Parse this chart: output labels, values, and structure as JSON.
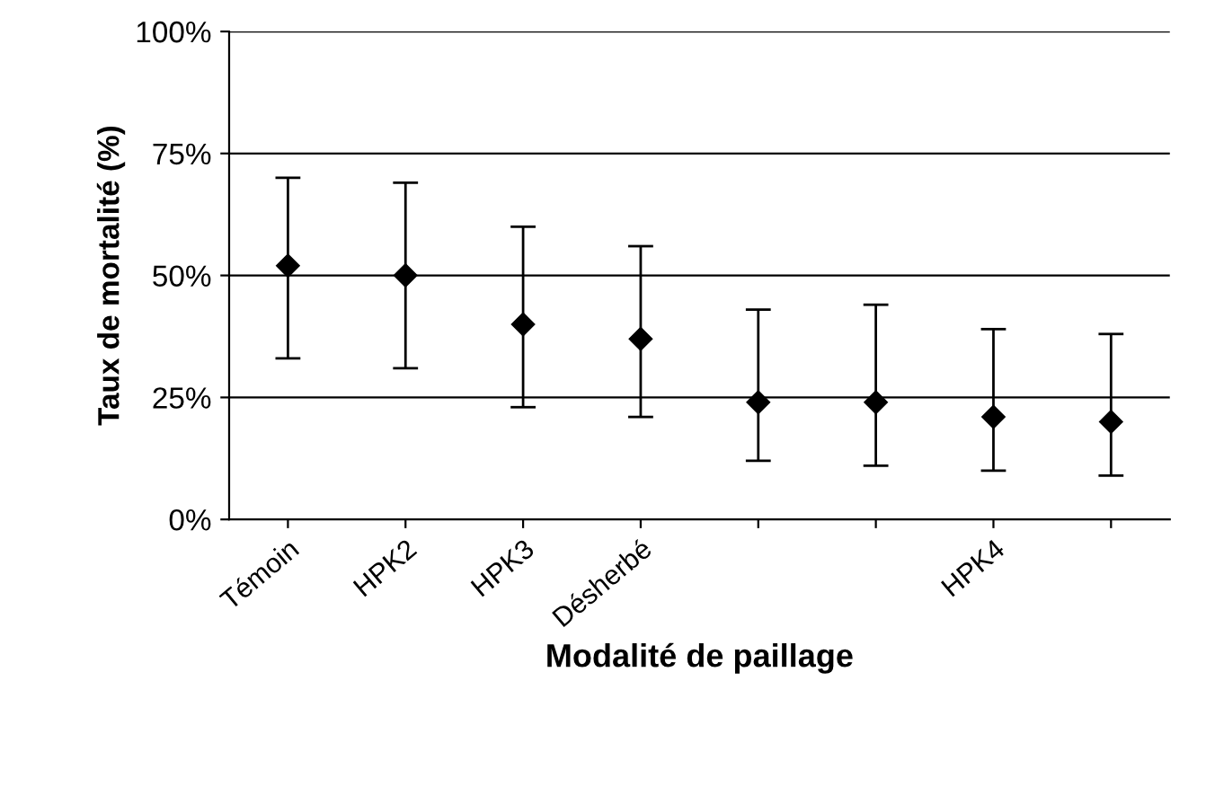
{
  "chart_data": {
    "type": "scatter",
    "xlabel": "Modalité de paillage",
    "ylabel": "Taux de mortalité (%)",
    "categories": [
      "Témoin",
      "HPK2",
      "HPK3",
      "Désherbé",
      null,
      null,
      "HPK4",
      null
    ],
    "values": [
      52,
      50,
      40,
      37,
      24,
      24,
      21,
      20
    ],
    "errors": [
      [
        33,
        70
      ],
      [
        31,
        69
      ],
      [
        23,
        60
      ],
      [
        21,
        56
      ],
      [
        12,
        43
      ],
      [
        11,
        44
      ],
      [
        10,
        39
      ],
      [
        9,
        38
      ]
    ],
    "color": "#000000",
    "marker": "diamond",
    "grid": "y",
    "ylim": [
      0,
      100
    ],
    "yticks": [
      {
        "value": 0,
        "label": "0%"
      },
      {
        "value": 25,
        "label": "25%"
      },
      {
        "value": 50,
        "label": "50%"
      },
      {
        "value": 75,
        "label": "75%"
      },
      {
        "value": 100,
        "label": "100%"
      }
    ]
  }
}
